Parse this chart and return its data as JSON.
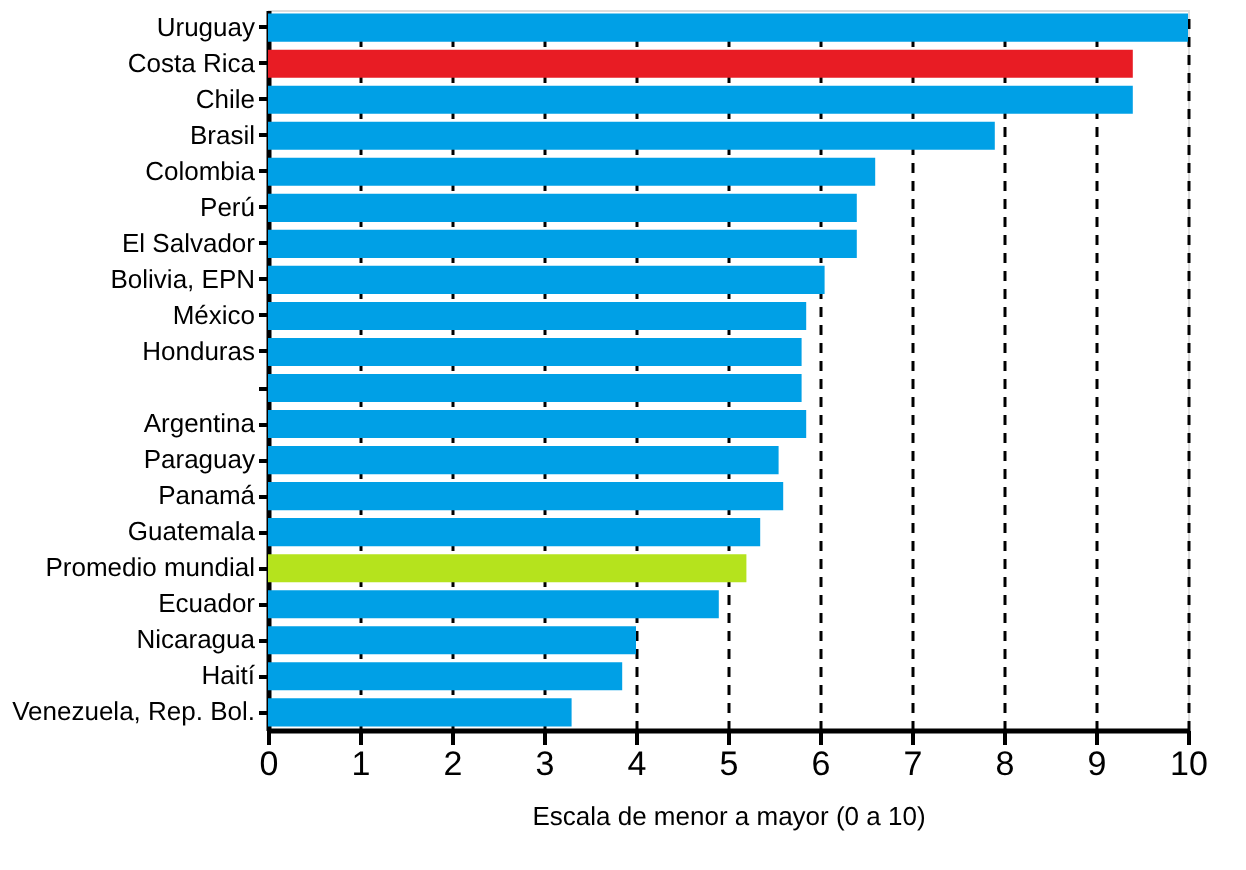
{
  "chart_data": {
    "type": "bar",
    "orientation": "horizontal",
    "xlabel": "Escala de menor a mayor (0 a 10)",
    "categories": [
      "Uruguay",
      "Costa Rica",
      "Chile",
      "Brasil",
      "Colombia",
      "Perú",
      "El Salvador",
      "Bolivia, EPN",
      "México",
      "Honduras",
      null,
      "Argentina",
      "Paraguay",
      "Panamá",
      "Guatemala",
      "Promedio mundial",
      "Ecuador",
      "Nicaragua",
      "Haití",
      "Venezuela, Rep. Bol."
    ],
    "values": [
      10,
      9.4,
      9.4,
      7.9,
      6.6,
      6.4,
      6.4,
      6.05,
      5.85,
      5.8,
      5.8,
      5.85,
      5.55,
      5.6,
      5.35,
      5.2,
      4.9,
      4.0,
      3.85,
      3.3
    ],
    "colors": [
      "#00a0e6",
      "#e81c24",
      "#00a0e6",
      "#00a0e6",
      "#00a0e6",
      "#00a0e6",
      "#00a0e6",
      "#00a0e6",
      "#00a0e6",
      "#00a0e6",
      "#00a0e6",
      "#00a0e6",
      "#00a0e6",
      "#00a0e6",
      "#00a0e6",
      "#b5e31d",
      "#00a0e6",
      "#00a0e6",
      "#00a0e6",
      "#00a0e6"
    ],
    "xlim": [
      0,
      10
    ],
    "xticks": [
      0,
      1,
      2,
      3,
      4,
      5,
      6,
      7,
      8,
      9,
      10
    ],
    "grid": "x"
  }
}
